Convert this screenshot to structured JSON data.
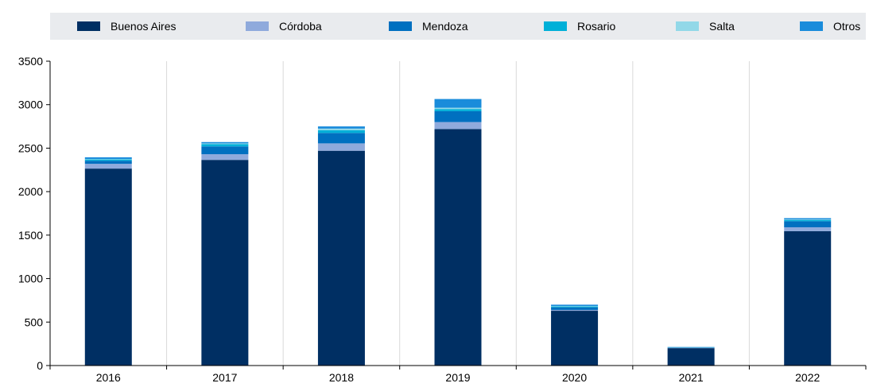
{
  "chart_data": {
    "type": "bar",
    "stacked": true,
    "categories": [
      "2016",
      "2017",
      "2018",
      "2019",
      "2020",
      "2021",
      "2022"
    ],
    "series": [
      {
        "name": "Buenos Aires",
        "color": "#002f63",
        "values": [
          2265,
          2365,
          2470,
          2720,
          630,
          200,
          1545
        ]
      },
      {
        "name": "Córdoba",
        "color": "#8faadc",
        "values": [
          55,
          65,
          85,
          80,
          10,
          3,
          45
        ]
      },
      {
        "name": "Mendoza",
        "color": "#0070c0",
        "values": [
          35,
          90,
          120,
          125,
          30,
          5,
          70
        ]
      },
      {
        "name": "Rosario",
        "color": "#00b0d8",
        "values": [
          15,
          25,
          30,
          25,
          10,
          2,
          15
        ]
      },
      {
        "name": "Salta",
        "color": "#92d8e8",
        "values": [
          5,
          10,
          20,
          15,
          5,
          1,
          5
        ]
      },
      {
        "name": "Otros",
        "color": "#1a8cdb",
        "values": [
          20,
          15,
          25,
          100,
          15,
          3,
          15
        ]
      }
    ],
    "xlabel": "",
    "ylabel": "",
    "ylim": [
      0,
      3500
    ],
    "yticks": [
      0,
      500,
      1000,
      1500,
      2000,
      2500,
      3000,
      3500
    ],
    "grid": "vertical separators between categories",
    "legend_position": "top"
  }
}
